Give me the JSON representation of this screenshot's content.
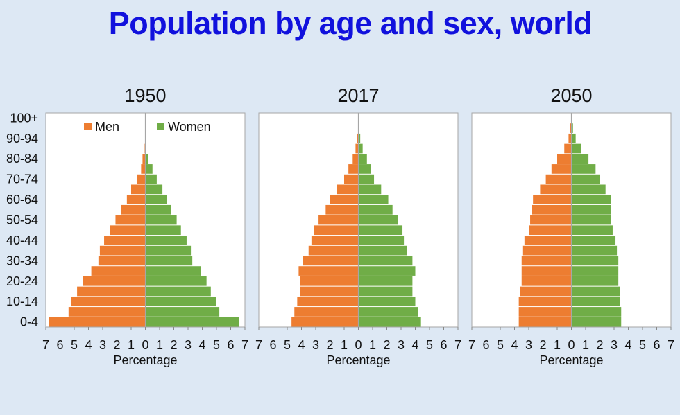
{
  "title": "Population by age and sex, world",
  "colors": {
    "men": "#ed7d31",
    "women": "#70ad47",
    "background": "#dde8f4",
    "title": "#1111dd"
  },
  "chart_data": [
    {
      "type": "bar",
      "orientation": "horizontal-pyramid",
      "title": "1950",
      "xlabel": "Percentage",
      "xlim": [
        -7,
        7
      ],
      "xticks": [
        "7",
        "6",
        "5",
        "4",
        "3",
        "2",
        "1",
        "0",
        "1",
        "2",
        "3",
        "4",
        "5",
        "6",
        "7"
      ],
      "legend": {
        "placement": "top",
        "entries": [
          "Men",
          "Women"
        ]
      },
      "categories": [
        "0-4",
        "5-9",
        "10-14",
        "15-19",
        "20-24",
        "25-29",
        "30-34",
        "35-39",
        "40-44",
        "45-49",
        "50-54",
        "55-59",
        "60-64",
        "65-69",
        "70-74",
        "75-79",
        "80-84",
        "85-89",
        "90-94",
        "95-99",
        "100+"
      ],
      "ytick_labels": [
        "0-4",
        "10-14",
        "20-24",
        "30-34",
        "40-44",
        "50-54",
        "60-64",
        "70-74",
        "80-84",
        "90-94",
        "100+"
      ],
      "series": [
        {
          "name": "Men",
          "values": [
            6.8,
            5.4,
            5.2,
            4.8,
            4.4,
            3.8,
            3.3,
            3.2,
            2.9,
            2.5,
            2.1,
            1.7,
            1.3,
            1.0,
            0.6,
            0.3,
            0.2,
            0.05,
            0.01,
            0,
            0
          ]
        },
        {
          "name": "Women",
          "values": [
            6.6,
            5.2,
            5.0,
            4.6,
            4.3,
            3.9,
            3.3,
            3.2,
            2.9,
            2.5,
            2.2,
            1.8,
            1.5,
            1.2,
            0.8,
            0.5,
            0.2,
            0.07,
            0.02,
            0,
            0
          ]
        }
      ]
    },
    {
      "type": "bar",
      "orientation": "horizontal-pyramid",
      "title": "2017",
      "xlabel": "Percentage",
      "xlim": [
        -7,
        7
      ],
      "xticks": [
        "7",
        "6",
        "5",
        "4",
        "3",
        "2",
        "1",
        "0",
        "1",
        "2",
        "3",
        "4",
        "5",
        "6",
        "7"
      ],
      "categories": [
        "0-4",
        "5-9",
        "10-14",
        "15-19",
        "20-24",
        "25-29",
        "30-34",
        "35-39",
        "40-44",
        "45-49",
        "50-54",
        "55-59",
        "60-64",
        "65-69",
        "70-74",
        "75-79",
        "80-84",
        "85-89",
        "90-94",
        "95-99",
        "100+"
      ],
      "series": [
        {
          "name": "Men",
          "values": [
            4.7,
            4.5,
            4.3,
            4.1,
            4.1,
            4.2,
            3.9,
            3.5,
            3.3,
            3.1,
            2.8,
            2.3,
            2.0,
            1.5,
            1.0,
            0.7,
            0.4,
            0.2,
            0.08,
            0.01,
            0
          ]
        },
        {
          "name": "Women",
          "values": [
            4.4,
            4.2,
            4.0,
            3.8,
            3.8,
            4.0,
            3.8,
            3.4,
            3.2,
            3.1,
            2.8,
            2.4,
            2.1,
            1.6,
            1.1,
            0.9,
            0.6,
            0.3,
            0.13,
            0.02,
            0
          ]
        }
      ]
    },
    {
      "type": "bar",
      "orientation": "horizontal-pyramid",
      "title": "2050",
      "xlabel": "Percentage",
      "xlim": [
        -7,
        7
      ],
      "xticks": [
        "7",
        "6",
        "5",
        "4",
        "3",
        "2",
        "1",
        "0",
        "1",
        "2",
        "3",
        "4",
        "5",
        "6",
        "7"
      ],
      "categories": [
        "0-4",
        "5-9",
        "10-14",
        "15-19",
        "20-24",
        "25-29",
        "30-34",
        "35-39",
        "40-44",
        "45-49",
        "50-54",
        "55-59",
        "60-64",
        "65-69",
        "70-74",
        "75-79",
        "80-84",
        "85-89",
        "90-94",
        "95-99",
        "100+"
      ],
      "series": [
        {
          "name": "Men",
          "values": [
            3.7,
            3.7,
            3.7,
            3.6,
            3.5,
            3.5,
            3.5,
            3.4,
            3.3,
            3.0,
            2.9,
            2.8,
            2.7,
            2.2,
            1.8,
            1.4,
            1.0,
            0.5,
            0.2,
            0.08,
            0.01
          ]
        },
        {
          "name": "Women",
          "values": [
            3.5,
            3.5,
            3.4,
            3.4,
            3.3,
            3.3,
            3.3,
            3.2,
            3.1,
            2.9,
            2.8,
            2.8,
            2.8,
            2.4,
            2.0,
            1.7,
            1.2,
            0.7,
            0.3,
            0.11,
            0.02
          ]
        }
      ]
    }
  ]
}
